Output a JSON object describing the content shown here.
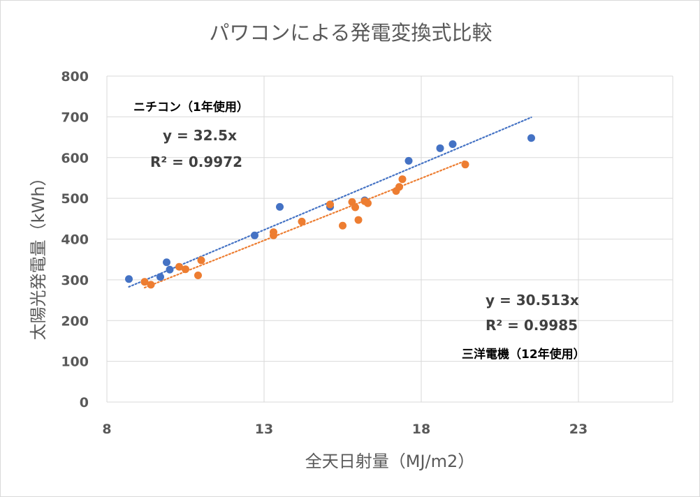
{
  "chart_data": {
    "type": "scatter",
    "title": "パワコンによる発電変換式比較",
    "xlabel": "全天日射量（MJ/m2）",
    "ylabel": "太陽光発電量（kWh）",
    "xlim": [
      8,
      26
    ],
    "ylim": [
      0,
      800
    ],
    "x_ticks": [
      "8",
      "13",
      "18",
      "23"
    ],
    "y_ticks": [
      "0",
      "100",
      "200",
      "300",
      "400",
      "500",
      "600",
      "700",
      "800"
    ],
    "grid": true,
    "legend": "none",
    "series": [
      {
        "color": "#4472C4",
        "points": [
          [
            8.7,
            302
          ],
          [
            9.7,
            307
          ],
          [
            9.9,
            343
          ],
          [
            10.0,
            325
          ],
          [
            12.7,
            409
          ],
          [
            13.5,
            479
          ],
          [
            15.1,
            479
          ],
          [
            16.2,
            495
          ],
          [
            17.6,
            592
          ],
          [
            18.6,
            623
          ],
          [
            19.0,
            633
          ],
          [
            21.5,
            648
          ]
        ],
        "trendline": {
          "slope": 32.5,
          "x_range": [
            8.7,
            21.5
          ]
        },
        "annotations": [
          "ニチコン（1年使用）",
          "y = 32.5x",
          "R² = 0.9972"
        ]
      },
      {
        "color": "#ED7D31",
        "points": [
          [
            9.2,
            295
          ],
          [
            9.4,
            288
          ],
          [
            10.3,
            332
          ],
          [
            10.5,
            326
          ],
          [
            10.9,
            311
          ],
          [
            11.0,
            348
          ],
          [
            13.3,
            409
          ],
          [
            13.3,
            417
          ],
          [
            14.2,
            443
          ],
          [
            15.1,
            485
          ],
          [
            15.5,
            433
          ],
          [
            15.8,
            491
          ],
          [
            15.9,
            478
          ],
          [
            16.0,
            447
          ],
          [
            16.2,
            493
          ],
          [
            16.3,
            488
          ],
          [
            17.2,
            518
          ],
          [
            17.3,
            528
          ],
          [
            17.4,
            547
          ],
          [
            19.4,
            583
          ]
        ],
        "trendline": {
          "slope": 30.513,
          "x_range": [
            9.2,
            19.4
          ]
        },
        "annotations": [
          "y = 30.513x",
          "R² = 0.9985",
          "三洋電機（12年使用）"
        ]
      }
    ]
  }
}
